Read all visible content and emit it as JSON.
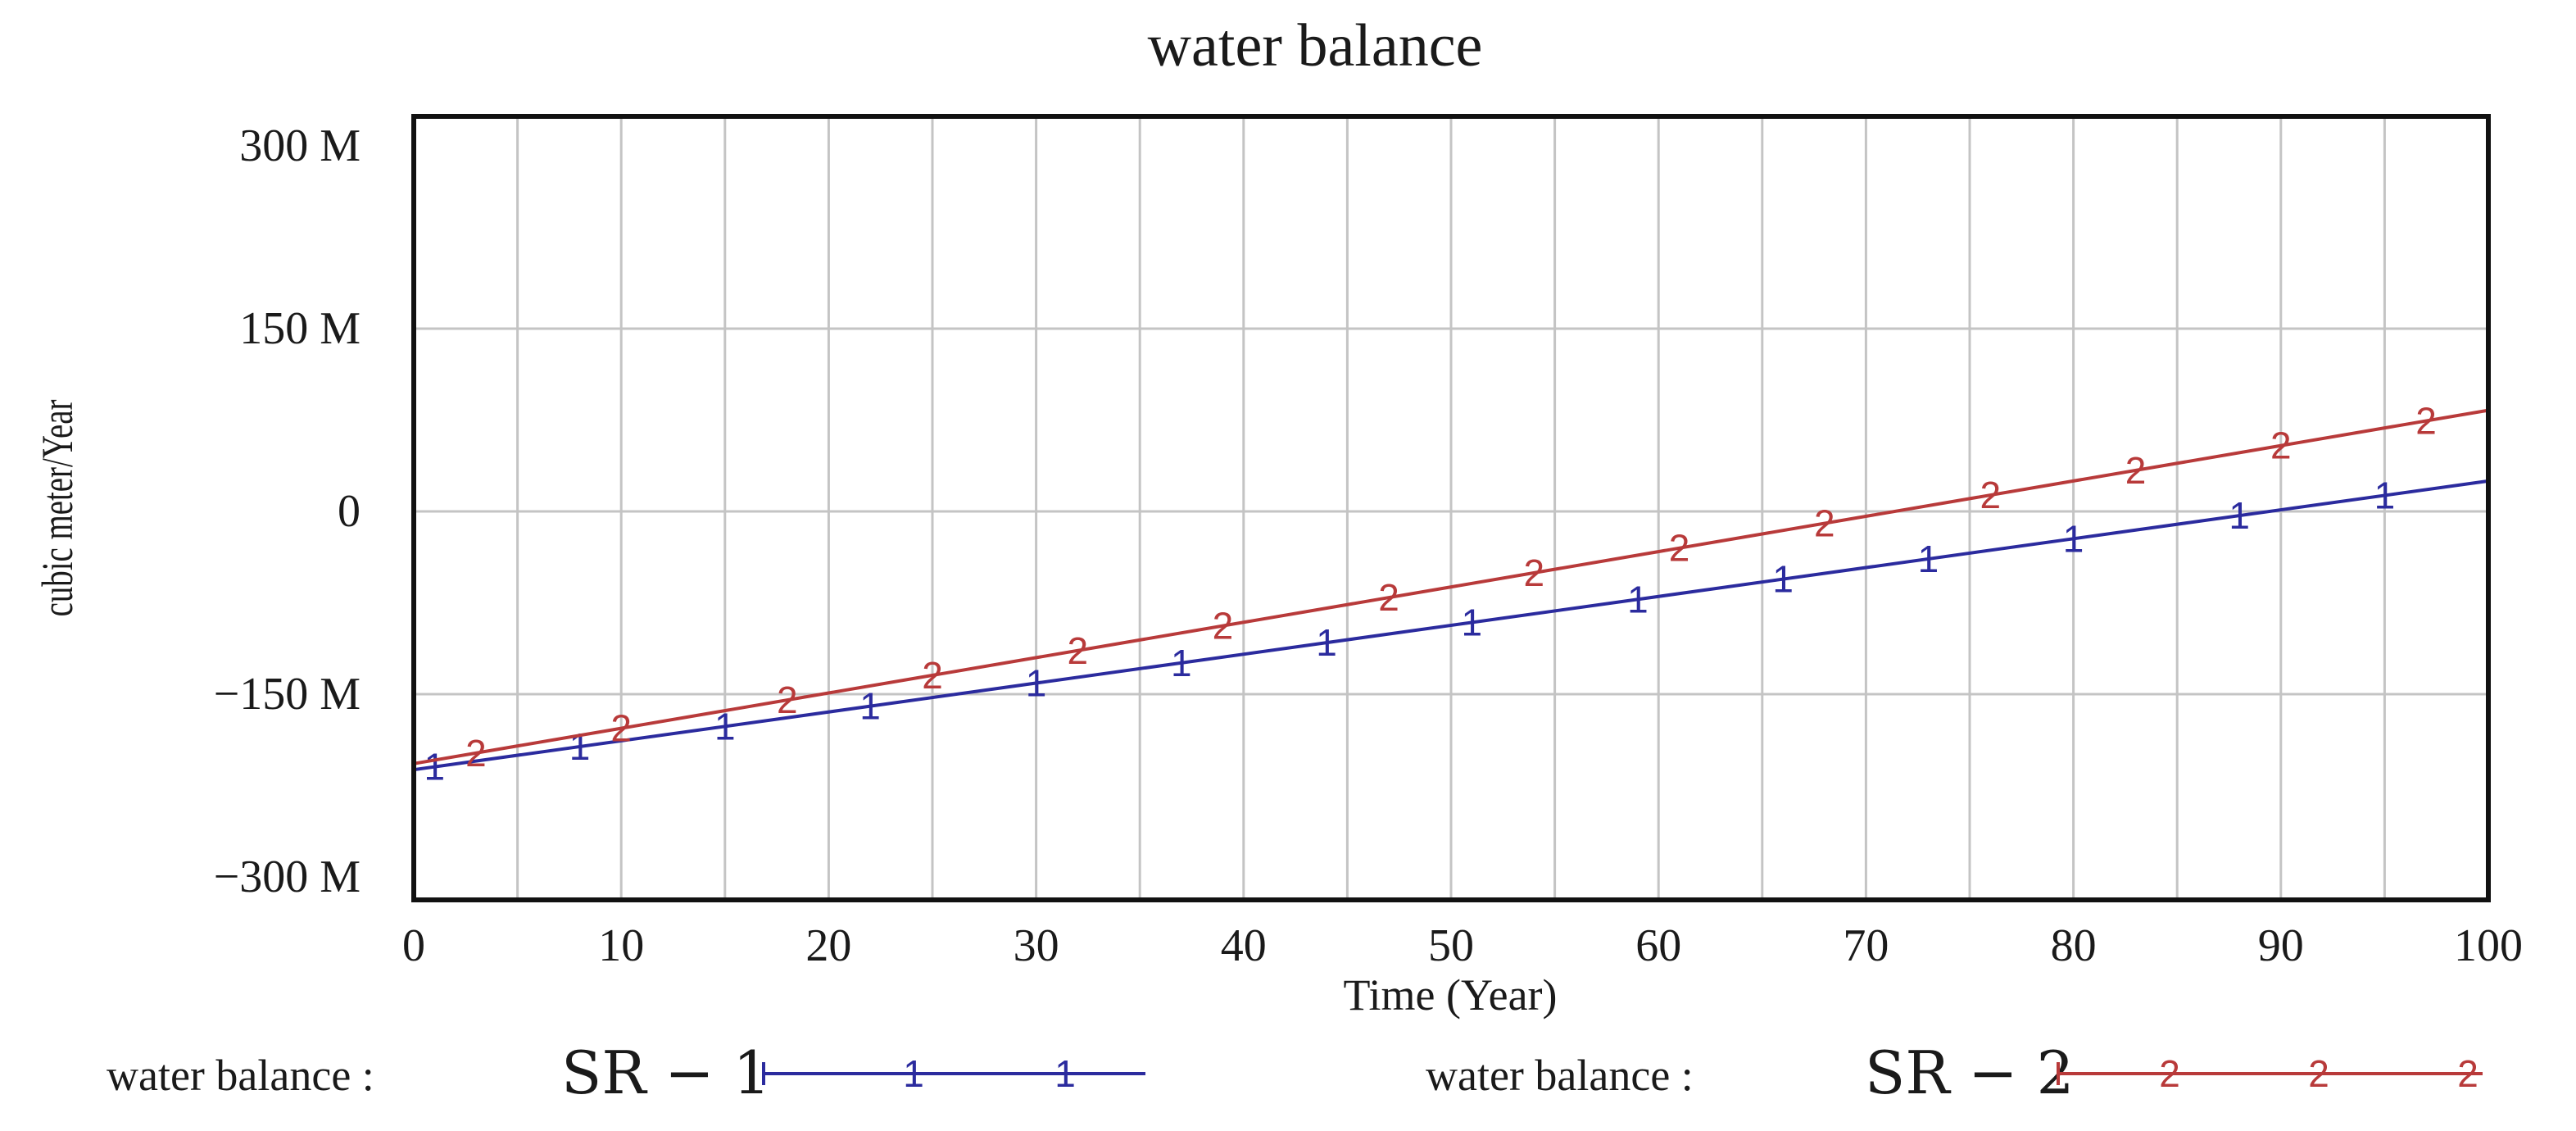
{
  "chart_data": {
    "type": "line",
    "title": "water balance",
    "xlabel": "Time (Year)",
    "ylabel": "cubic meter/Year",
    "xlim": [
      0,
      100
    ],
    "ylim": [
      -300,
      300
    ],
    "x_ticks": [
      0,
      10,
      20,
      30,
      40,
      50,
      60,
      70,
      80,
      90,
      100
    ],
    "x_tick_labels": [
      "0",
      "10",
      "20",
      "30",
      "40",
      "50",
      "60",
      "70",
      "80",
      "90",
      "100"
    ],
    "y_ticks": [
      300,
      150,
      0,
      -150,
      -300
    ],
    "y_tick_labels": [
      "300 M",
      "150 M",
      "0",
      "−150 M",
      "−300 M"
    ],
    "y_units": "millions of cubic meters per year",
    "grid": true,
    "legend_position": "bottom",
    "series": [
      {
        "name_prefix": "water balance : ",
        "name_series": "SR − 1",
        "marker": "1",
        "color": "#2b2b9e",
        "x": [
          0,
          100
        ],
        "values": [
          -212,
          25
        ],
        "marker_x": [
          1,
          8,
          15,
          22,
          30,
          37,
          44,
          51,
          59,
          66,
          73,
          80,
          88,
          95
        ]
      },
      {
        "name_prefix": "water balance : ",
        "name_series": "SR − 2",
        "marker": "2",
        "color": "#b83a3a",
        "x": [
          0,
          100
        ],
        "values": [
          -207,
          83
        ],
        "marker_x": [
          3,
          10,
          18,
          25,
          32,
          39,
          47,
          54,
          61,
          68,
          76,
          83,
          90,
          97
        ]
      }
    ]
  }
}
